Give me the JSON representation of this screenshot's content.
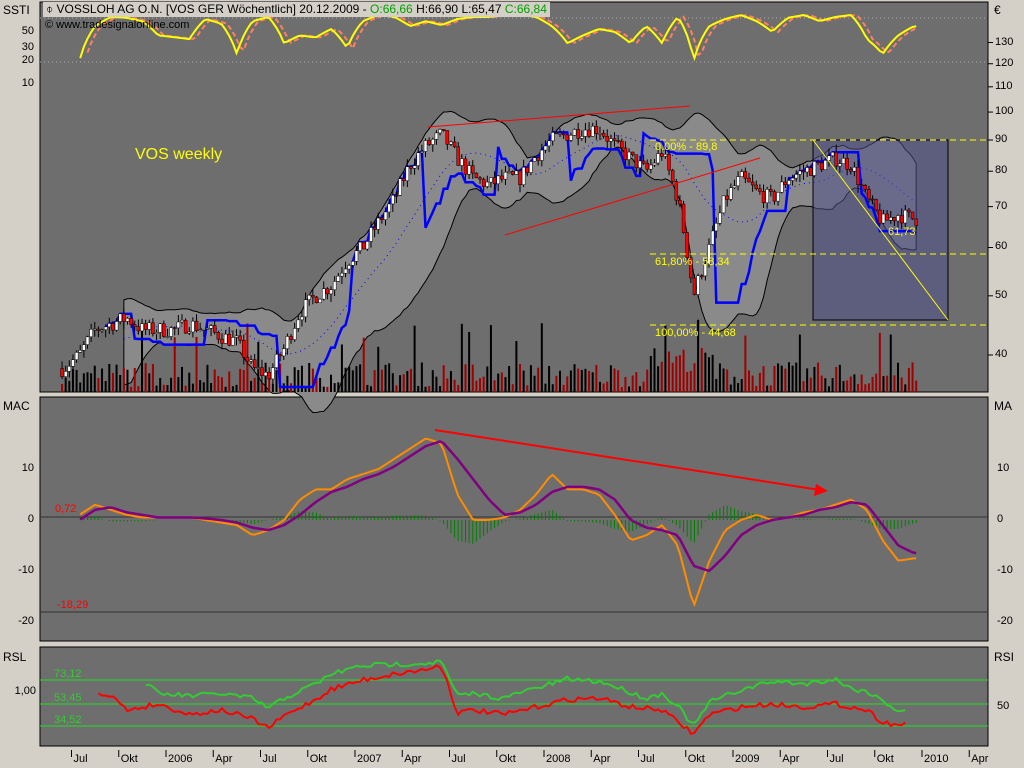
{
  "header": {
    "instrument": "VOSSLOH AG O.N. [VOS GER  Wöchentlich] 20.12.2009 -",
    "open": "O:66,66",
    "high": "H:66,90",
    "low": "L:65,47",
    "close": "C:66,84",
    "watermark": "© www.tradesignalonline.com"
  },
  "panels": {
    "ssti_label": "SSTI",
    "currency_label": "€",
    "macd_label_left": "MAC",
    "macd_label_right": "MA",
    "rsl_label": "RSL",
    "rsi_label": "RSI"
  },
  "annotations": {
    "title": "VOS weekly",
    "fib_0": "0,00% - 89,8",
    "fib_618": "61,80% - 58,34",
    "fib_100": "100,00% - 44,68",
    "target": "61,73",
    "macd_value": "0,72",
    "macd_min": "-18,29",
    "rsi_upper": "73,12",
    "rsi_mid": "53,45",
    "rsi_lower": "34,52"
  },
  "colors": {
    "up": "#ffffff",
    "down": "#ff0000",
    "ssti": "#ffff00",
    "macd": "#ff8c00",
    "signal": "#800080",
    "rsi": "#33cc33",
    "rsl": "#ff0000",
    "stop": "#0000ff",
    "fib": "#ffff00"
  },
  "chart_data": [
    {
      "type": "candlestick",
      "title": "VOSSLOH AG O.N. weekly",
      "scale": "log",
      "y_ticks": [
        "130",
        "120",
        "110",
        "100",
        "90",
        "80",
        "70",
        "60",
        "50",
        "40"
      ],
      "x_ticks": [
        "Jul",
        "Okt",
        "2006",
        "Apr",
        "Jul",
        "Okt",
        "2007",
        "Apr",
        "Jul",
        "Okt",
        "2008",
        "Apr",
        "Jul",
        "Okt",
        "2009",
        "Apr",
        "Jul",
        "Okt",
        "2010",
        "Apr"
      ],
      "monthly_close": {
        "2005-06": 38,
        "2005-07": 40,
        "2005-08": 44,
        "2005-09": 45,
        "2005-10": 46,
        "2005-11": 44,
        "2005-12": 44,
        "2006-01": 44,
        "2006-02": 45,
        "2006-03": 44,
        "2006-04": 43,
        "2006-05": 42,
        "2006-06": 38,
        "2006-07": 37,
        "2006-08": 41,
        "2006-09": 47,
        "2006-10": 50,
        "2006-11": 52,
        "2006-12": 57,
        "2007-01": 60,
        "2007-02": 66,
        "2007-03": 72,
        "2007-04": 82,
        "2007-05": 88,
        "2007-06": 92,
        "2007-07": 84,
        "2007-08": 78,
        "2007-09": 76,
        "2007-10": 78,
        "2007-11": 78,
        "2007-12": 85,
        "2008-01": 90,
        "2008-02": 92,
        "2008-03": 94,
        "2008-04": 94,
        "2008-05": 88,
        "2008-06": 84,
        "2008-07": 80,
        "2008-08": 86,
        "2008-09": 72,
        "2008-10": 50,
        "2008-11": 60,
        "2008-12": 72,
        "2009-01": 78,
        "2009-02": 74,
        "2009-03": 72,
        "2009-04": 78,
        "2009-05": 80,
        "2009-06": 82,
        "2009-07": 84,
        "2009-08": 82,
        "2009-09": 72,
        "2009-10": 66,
        "2009-11": 68,
        "2009-12": 66.84
      },
      "fibonacci": [
        {
          "level": "0,00%",
          "price": 89.8
        },
        {
          "level": "61,80%",
          "price": 58.34
        },
        {
          "level": "100,00%",
          "price": 44.68
        }
      ],
      "target_price": 61.73
    },
    {
      "type": "line",
      "name": "SSTI",
      "y_ticks": [
        "50",
        "30",
        "20",
        "10"
      ],
      "values": {
        "2005-07": 20,
        "2005-08": 60,
        "2005-09": 80,
        "2005-10": 78,
        "2005-11": 70,
        "2005-12": 45,
        "2006-02": 40,
        "2006-03": 75,
        "2006-04": 65,
        "2006-05": 25,
        "2006-06": 70,
        "2006-07": 80,
        "2006-08": 35,
        "2006-09": 45,
        "2006-10": 42,
        "2006-11": 55,
        "2006-12": 30,
        "2007-01": 70,
        "2007-02": 85,
        "2007-03": 80,
        "2007-04": 60,
        "2007-05": 70,
        "2007-06": 62,
        "2007-07": 75,
        "2007-08": 80,
        "2007-09": 80,
        "2007-10": 85,
        "2007-11": 85,
        "2007-12": 80,
        "2008-01": 60,
        "2008-02": 35,
        "2008-03": 45,
        "2008-04": 55,
        "2008-05": 50,
        "2008-06": 35,
        "2008-07": 60,
        "2008-08": 35,
        "2008-09": 80,
        "2008-10": 20,
        "2008-11": 60,
        "2008-12": 75,
        "2009-01": 85,
        "2009-02": 70,
        "2009-03": 50,
        "2009-04": 78,
        "2009-05": 85,
        "2009-06": 70,
        "2009-07": 80,
        "2009-08": 85,
        "2009-09": 40,
        "2009-10": 25,
        "2009-11": 45,
        "2009-12": 60
      }
    },
    {
      "type": "line",
      "name": "MACD",
      "y_ticks": [
        "10",
        "0",
        "-10",
        "-20"
      ],
      "macd": {
        "2005-07": 1,
        "2005-08": 3,
        "2005-09": 2,
        "2005-10": 1,
        "2005-11": 0.5,
        "2005-12": 0.5,
        "2006-01": 0.5,
        "2006-02": 0.5,
        "2006-03": 0,
        "2006-04": -0.5,
        "2006-05": -1,
        "2006-06": -3,
        "2006-07": -2,
        "2006-08": 0,
        "2006-09": 4,
        "2006-10": 6,
        "2006-11": 6,
        "2006-12": 8,
        "2007-01": 9,
        "2007-02": 10,
        "2007-03": 12,
        "2007-04": 14,
        "2007-05": 16,
        "2007-06": 15,
        "2007-07": 5,
        "2007-08": 0,
        "2007-09": 0,
        "2007-10": 0.5,
        "2007-11": 2,
        "2007-12": 5,
        "2008-01": 9,
        "2008-02": 6,
        "2008-03": 6,
        "2008-04": 5,
        "2008-05": 1,
        "2008-06": -4,
        "2008-07": -3,
        "2008-08": -1,
        "2008-09": -5,
        "2008-10": -17,
        "2008-11": -8,
        "2008-12": -2,
        "2009-01": 0,
        "2009-02": 1,
        "2009-03": 0,
        "2009-04": 0.5,
        "2009-05": 1.5,
        "2009-06": 2,
        "2009-07": 3,
        "2009-08": 4,
        "2009-09": 2,
        "2009-10": -4,
        "2009-11": -8,
        "2009-12": -7.5
      },
      "signal": {
        "2005-07": 0,
        "2005-08": 2,
        "2005-09": 2.5,
        "2005-10": 1.5,
        "2005-11": 1,
        "2005-12": 0.5,
        "2006-01": 0.5,
        "2006-02": 0.5,
        "2006-03": 0.3,
        "2006-04": 0,
        "2006-05": -0.5,
        "2006-06": -1.5,
        "2006-07": -2,
        "2006-08": -1,
        "2006-09": 1,
        "2006-10": 3.5,
        "2006-11": 5.5,
        "2006-12": 6.5,
        "2007-01": 8,
        "2007-02": 9,
        "2007-03": 10.5,
        "2007-04": 12.5,
        "2007-05": 14.5,
        "2007-06": 15.5,
        "2007-07": 12,
        "2007-08": 8,
        "2007-09": 4,
        "2007-10": 1,
        "2007-11": 1.5,
        "2007-12": 3,
        "2008-01": 5.5,
        "2008-02": 6.5,
        "2008-03": 6.5,
        "2008-04": 6,
        "2008-05": 4,
        "2008-06": 0,
        "2008-07": -1.5,
        "2008-08": -2,
        "2008-09": -3,
        "2008-10": -9,
        "2008-11": -10,
        "2008-12": -7,
        "2009-01": -3,
        "2009-02": -1,
        "2009-03": 0,
        "2009-04": 0.5,
        "2009-05": 1,
        "2009-06": 2,
        "2009-07": 2.5,
        "2009-08": 3.5,
        "2009-09": 3,
        "2009-10": -1,
        "2009-11": -5,
        "2009-12": -6.5
      }
    },
    {
      "type": "line",
      "name": "RSL / RSI",
      "rsl_ticks": [
        "1,00"
      ],
      "rsi_ticks": [
        "50"
      ],
      "rsi": {
        "2005-11": 73,
        "2005-12": 62,
        "2006-02": 60,
        "2006-04": 62,
        "2006-06": 58,
        "2006-07": 50,
        "2006-08": 58,
        "2006-10": 70,
        "2006-11": 78,
        "2007-01": 85,
        "2007-03": 86,
        "2007-05": 87,
        "2007-06": 88,
        "2007-07": 60,
        "2007-08": 62,
        "2007-10": 58,
        "2007-11": 63,
        "2008-01": 70,
        "2008-02": 74,
        "2008-04": 72,
        "2008-05": 68,
        "2008-07": 58,
        "2008-08": 62,
        "2008-09": 52,
        "2008-10": 35,
        "2008-11": 55,
        "2009-01": 65,
        "2009-03": 72,
        "2009-05": 70,
        "2009-07": 74,
        "2009-08": 66,
        "2009-09": 64,
        "2009-10": 56,
        "2009-11": 48,
        "2009-12": 50
      },
      "rsl": {
        "2005-08": 1.0,
        "2005-09": 0.98,
        "2005-10": 0.88,
        "2005-12": 0.92,
        "2006-02": 0.85,
        "2006-04": 0.88,
        "2006-06": 0.82,
        "2006-07": 0.76,
        "2006-08": 0.84,
        "2006-10": 0.95,
        "2006-11": 1.02,
        "2007-01": 1.08,
        "2007-03": 1.12,
        "2007-05": 1.15,
        "2007-06": 1.18,
        "2007-07": 0.86,
        "2007-08": 0.88,
        "2007-10": 0.85,
        "2007-12": 0.9,
        "2008-02": 0.95,
        "2008-04": 0.96,
        "2008-06": 0.9,
        "2008-08": 0.88,
        "2008-09": 0.8,
        "2008-10": 0.72,
        "2008-11": 0.85,
        "2009-01": 0.9,
        "2009-03": 0.92,
        "2009-05": 0.9,
        "2009-07": 0.92,
        "2009-09": 0.88,
        "2009-10": 0.8,
        "2009-11": 0.78,
        "2009-12": 0.8
      }
    }
  ]
}
